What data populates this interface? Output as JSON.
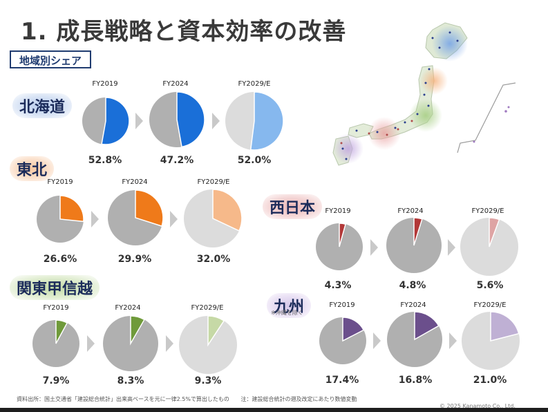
{
  "title": "1. 成長戦略と資本効率の改善",
  "subtitle": "地域別シェア",
  "footnote_left": "資料出所：国土交通省「建設総合統計」出来高ベースを元に一律2.5%で算出したもの",
  "footnote_right": "注：建設総合統計の遡及改定にあたり数値変動",
  "copyright": "© 2025 Kanamoto Co., Ltd.",
  "colors": {
    "other_share": "#b0b0b0",
    "forecast_other": "#dcdcdc"
  },
  "map_icon": "japan-map-icon",
  "chart_data": [
    {
      "type": "pie",
      "region": "北海道",
      "categories": [
        "FY2019",
        "FY2024",
        "FY2029/E"
      ],
      "values": [
        52.8,
        47.2,
        52.0
      ],
      "labels": [
        "52.8%",
        "47.2%",
        "52.0%"
      ],
      "colors": [
        "#1a6fd8",
        "#1a6fd8",
        "#86b8ee"
      ],
      "halo": "#9bbbe6"
    },
    {
      "type": "pie",
      "region": "東北",
      "categories": [
        "FY2019",
        "FY2024",
        "FY2029/E"
      ],
      "values": [
        26.6,
        29.9,
        32.0
      ],
      "labels": [
        "26.6%",
        "29.9%",
        "32.0%"
      ],
      "colors": [
        "#ef7a1a",
        "#ef7a1a",
        "#f6b98a"
      ],
      "halo": "#f7c6a0"
    },
    {
      "type": "pie",
      "region": "関東甲信越",
      "categories": [
        "FY2019",
        "FY2024",
        "FY2029/E"
      ],
      "values": [
        7.9,
        8.3,
        9.3
      ],
      "labels": [
        "7.9%",
        "8.3%",
        "9.3%"
      ],
      "colors": [
        "#6f9a3a",
        "#6f9a3a",
        "#c6d9a6"
      ],
      "halo": "#b8d49a"
    },
    {
      "type": "pie",
      "region": "西日本",
      "categories": [
        "FY2019",
        "FY2024",
        "FY2029/E"
      ],
      "values": [
        4.3,
        4.8,
        5.6
      ],
      "labels": [
        "4.3%",
        "4.8%",
        "5.6%"
      ],
      "colors": [
        "#b23838",
        "#b23838",
        "#dea4a4"
      ],
      "halo": "#e8b4b4"
    },
    {
      "type": "pie",
      "region": "九州",
      "region_note": "※沖縄を除く",
      "categories": [
        "FY2019",
        "FY2024",
        "FY2029/E"
      ],
      "values": [
        17.4,
        16.8,
        21.0
      ],
      "labels": [
        "17.4%",
        "16.8%",
        "21.0%"
      ],
      "colors": [
        "#6b4f8c",
        "#6b4f8c",
        "#bfb0d4"
      ],
      "halo": "#c9b8df"
    }
  ]
}
